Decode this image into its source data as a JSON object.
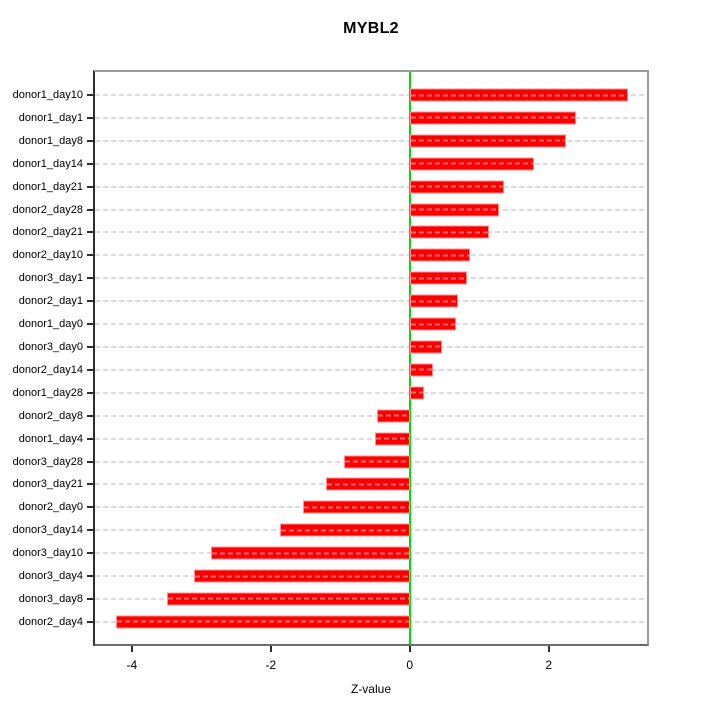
{
  "title": "MYBL2",
  "x_axis_label": "Z-value",
  "chart_data": {
    "type": "bar",
    "orientation": "horizontal",
    "title": "MYBL2",
    "xlabel": "Z-value",
    "ylabel": "",
    "categories": [
      "donor1_day10",
      "donor1_day1",
      "donor1_day8",
      "donor1_day14",
      "donor1_day21",
      "donor2_day28",
      "donor2_day21",
      "donor2_day10",
      "donor3_day1",
      "donor2_day1",
      "donor1_day0",
      "donor3_day0",
      "donor2_day14",
      "donor1_day28",
      "donor2_day8",
      "donor1_day4",
      "donor3_day28",
      "donor3_day21",
      "donor2_day0",
      "donor3_day14",
      "donor3_day10",
      "donor3_day4",
      "donor3_day8",
      "donor2_day4"
    ],
    "values": [
      3.12,
      2.38,
      2.24,
      1.77,
      1.35,
      1.27,
      1.13,
      0.86,
      0.81,
      0.69,
      0.65,
      0.46,
      0.33,
      0.19,
      -0.48,
      -0.51,
      -0.96,
      -1.21,
      -1.54,
      -1.87,
      -2.86,
      -3.11,
      -3.49,
      -4.23
    ],
    "xlim": [
      -4.53,
      3.4
    ],
    "xticks": [
      -4,
      -2,
      0,
      2
    ],
    "grid": true,
    "gridline_style": "dashed",
    "legend": false,
    "zero_reference_line": 0,
    "colors": {
      "bar": "#fa0000",
      "bar_border": "#ff8f8f",
      "zero_line": "#00dc00",
      "grid": "#dcdcdc",
      "box": "#9b9b9b",
      "axis": "#2e2e2e",
      "text": "#000000",
      "background": "#ffffff"
    }
  }
}
